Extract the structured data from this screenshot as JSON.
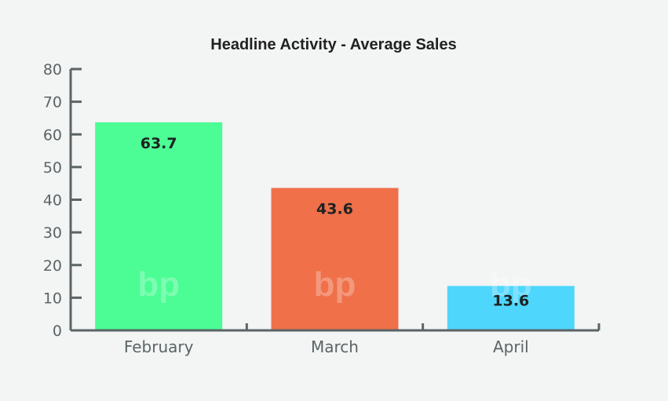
{
  "chart_data": {
    "type": "bar",
    "title": "Headline Activity - Average Sales",
    "xlabel": "",
    "ylabel": "",
    "categories": [
      "February",
      "March",
      "April"
    ],
    "values": [
      63.7,
      43.6,
      13.6
    ],
    "data_labels": [
      "63.7",
      "43.6",
      "13.6"
    ],
    "ylim": [
      0,
      80
    ],
    "yticks": [
      0,
      10,
      20,
      30,
      40,
      50,
      60,
      70,
      80
    ],
    "grid": false,
    "legend": "none",
    "colors": [
      "#4bfd94",
      "#ef7049",
      "#4fd6fd"
    ],
    "axis_color": "#5b6466",
    "watermark": "bp"
  }
}
